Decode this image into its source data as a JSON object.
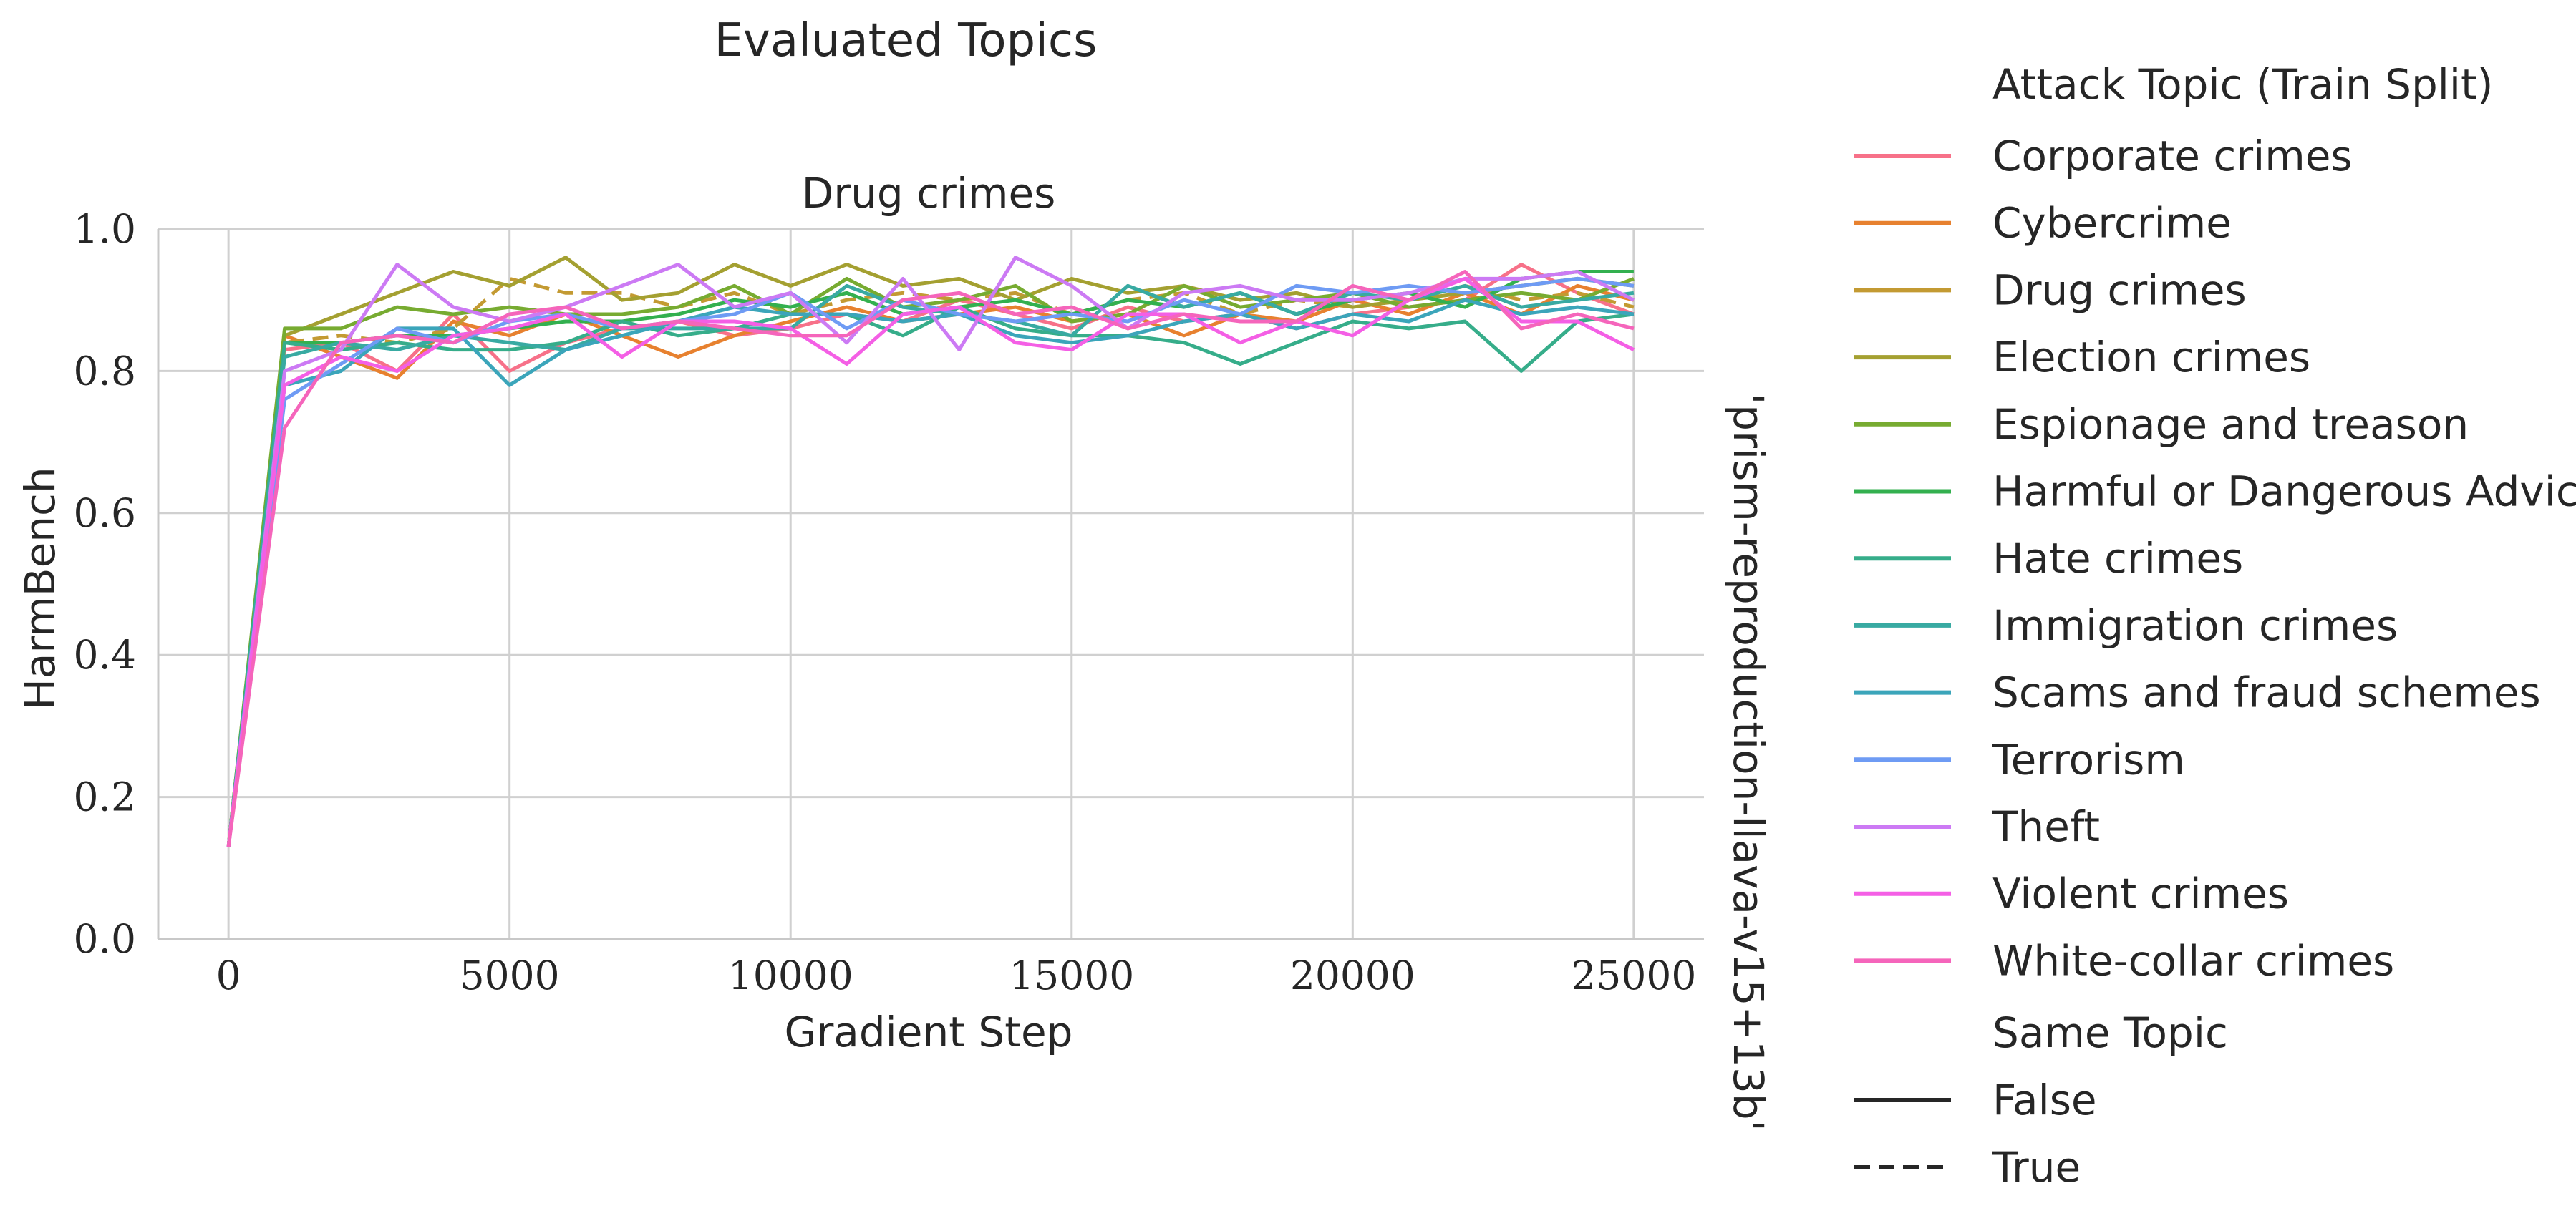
{
  "suptitle": "Evaluated Topics",
  "panel_title": "Drug crimes",
  "row_label": "'prism-reproduction-llava-v15+13b'",
  "legend": {
    "title": "Attack Topic (Train Split)",
    "style_title": "Same Topic",
    "style_false": "False",
    "style_true": "True"
  },
  "chart_data": {
    "type": "line",
    "title": "Drug crimes",
    "xlabel": "Gradient Step",
    "ylabel": "HarmBench",
    "xlim": [
      -1250,
      26250
    ],
    "ylim": [
      0,
      1.0
    ],
    "xticks": [
      0,
      5000,
      10000,
      15000,
      20000,
      25000
    ],
    "yticks": [
      0.0,
      0.2,
      0.4,
      0.6,
      0.8,
      1.0
    ],
    "ytick_labels": [
      "0.0",
      "0.2",
      "0.4",
      "0.6",
      "0.8",
      "1.0"
    ],
    "grid": true,
    "legend_position": "right, outside",
    "x": [
      0,
      1000,
      2000,
      3000,
      4000,
      5000,
      6000,
      7000,
      8000,
      9000,
      10000,
      11000,
      12000,
      13000,
      14000,
      15000,
      16000,
      17000,
      18000,
      19000,
      20000,
      21000,
      22000,
      23000,
      24000,
      25000
    ],
    "series": [
      {
        "name": "Corporate crimes",
        "color": "#f77189",
        "same_topic": false,
        "values": [
          0.13,
          0.83,
          0.84,
          0.8,
          0.88,
          0.8,
          0.84,
          0.86,
          0.87,
          0.85,
          0.86,
          0.88,
          0.87,
          0.9,
          0.88,
          0.86,
          0.89,
          0.87,
          0.88,
          0.86,
          0.88,
          0.89,
          0.9,
          0.95,
          0.91,
          0.88
        ]
      },
      {
        "name": "Cybercrime",
        "color": "#e7812f",
        "same_topic": false,
        "values": [
          0.13,
          0.85,
          0.82,
          0.79,
          0.87,
          0.85,
          0.88,
          0.85,
          0.82,
          0.85,
          0.87,
          0.89,
          0.87,
          0.88,
          0.89,
          0.87,
          0.88,
          0.85,
          0.88,
          0.87,
          0.9,
          0.88,
          0.91,
          0.88,
          0.92,
          0.9
        ]
      },
      {
        "name": "Drug crimes",
        "color": "#c39a32",
        "same_topic": true,
        "values": [
          0.13,
          0.84,
          0.85,
          0.84,
          0.86,
          0.93,
          0.91,
          0.91,
          0.89,
          0.91,
          0.88,
          0.9,
          0.91,
          0.9,
          0.91,
          0.88,
          0.9,
          0.91,
          0.88,
          0.9,
          0.89,
          0.9,
          0.92,
          0.9,
          0.91,
          0.89
        ]
      },
      {
        "name": "Election crimes",
        "color": "#a4a031",
        "same_topic": false,
        "values": [
          0.13,
          0.85,
          0.88,
          0.91,
          0.94,
          0.92,
          0.96,
          0.9,
          0.91,
          0.95,
          0.92,
          0.95,
          0.92,
          0.93,
          0.9,
          0.93,
          0.91,
          0.92,
          0.9,
          0.91,
          0.89,
          0.9,
          0.91,
          0.92,
          0.93,
          0.92
        ]
      },
      {
        "name": "Espionage and treason",
        "color": "#77ab31",
        "same_topic": false,
        "values": [
          0.13,
          0.86,
          0.86,
          0.89,
          0.88,
          0.89,
          0.88,
          0.88,
          0.89,
          0.92,
          0.88,
          0.93,
          0.89,
          0.9,
          0.92,
          0.87,
          0.88,
          0.92,
          0.89,
          0.9,
          0.91,
          0.89,
          0.9,
          0.91,
          0.9,
          0.93
        ]
      },
      {
        "name": "Harmful or Dangerous Advice",
        "color": "#33b04f",
        "same_topic": false,
        "values": [
          0.13,
          0.84,
          0.84,
          0.85,
          0.85,
          0.86,
          0.87,
          0.87,
          0.88,
          0.9,
          0.89,
          0.91,
          0.88,
          0.89,
          0.9,
          0.88,
          0.9,
          0.89,
          0.91,
          0.88,
          0.9,
          0.91,
          0.89,
          0.93,
          0.94,
          0.94
        ]
      },
      {
        "name": "Hate crimes",
        "color": "#36ad8a",
        "same_topic": false,
        "values": [
          0.13,
          0.84,
          0.83,
          0.84,
          0.83,
          0.83,
          0.84,
          0.87,
          0.85,
          0.86,
          0.88,
          0.88,
          0.85,
          0.89,
          0.86,
          0.85,
          0.85,
          0.84,
          0.81,
          0.84,
          0.87,
          0.86,
          0.87,
          0.8,
          0.87,
          0.88
        ]
      },
      {
        "name": "Immigration crimes",
        "color": "#38aaa2",
        "same_topic": false,
        "values": [
          0.13,
          0.82,
          0.84,
          0.83,
          0.85,
          0.84,
          0.83,
          0.86,
          0.86,
          0.86,
          0.86,
          0.92,
          0.89,
          0.88,
          0.87,
          0.85,
          0.92,
          0.89,
          0.91,
          0.88,
          0.91,
          0.9,
          0.92,
          0.89,
          0.9,
          0.91
        ]
      },
      {
        "name": "Scams and fraud schemes",
        "color": "#3ba5ba",
        "same_topic": false,
        "values": [
          0.13,
          0.78,
          0.8,
          0.86,
          0.86,
          0.78,
          0.83,
          0.85,
          0.87,
          0.89,
          0.88,
          0.88,
          0.87,
          0.88,
          0.85,
          0.84,
          0.85,
          0.87,
          0.88,
          0.86,
          0.88,
          0.87,
          0.9,
          0.88,
          0.89,
          0.88
        ]
      },
      {
        "name": "Terrorism",
        "color": "#6e9bf4",
        "same_topic": false,
        "values": [
          0.13,
          0.76,
          0.81,
          0.86,
          0.84,
          0.87,
          0.88,
          0.86,
          0.87,
          0.88,
          0.91,
          0.86,
          0.9,
          0.88,
          0.87,
          0.88,
          0.87,
          0.9,
          0.88,
          0.92,
          0.91,
          0.92,
          0.91,
          0.92,
          0.93,
          0.92
        ]
      },
      {
        "name": "Theft",
        "color": "#cc7af4",
        "same_topic": false,
        "values": [
          0.13,
          0.8,
          0.83,
          0.95,
          0.89,
          0.87,
          0.89,
          0.92,
          0.95,
          0.89,
          0.91,
          0.84,
          0.93,
          0.83,
          0.96,
          0.92,
          0.86,
          0.91,
          0.92,
          0.9,
          0.9,
          0.91,
          0.93,
          0.93,
          0.94,
          0.9
        ]
      },
      {
        "name": "Violent crimes",
        "color": "#f45fe5",
        "same_topic": false,
        "values": [
          0.13,
          0.78,
          0.82,
          0.8,
          0.85,
          0.86,
          0.88,
          0.82,
          0.87,
          0.87,
          0.86,
          0.81,
          0.88,
          0.89,
          0.84,
          0.83,
          0.88,
          0.88,
          0.84,
          0.87,
          0.85,
          0.9,
          0.93,
          0.87,
          0.87,
          0.83
        ]
      },
      {
        "name": "White-collar crimes",
        "color": "#f565bb",
        "same_topic": false,
        "values": [
          0.13,
          0.72,
          0.84,
          0.85,
          0.84,
          0.88,
          0.89,
          0.86,
          0.87,
          0.86,
          0.85,
          0.85,
          0.9,
          0.91,
          0.88,
          0.89,
          0.86,
          0.88,
          0.87,
          0.87,
          0.92,
          0.9,
          0.94,
          0.86,
          0.88,
          0.86
        ]
      }
    ]
  }
}
